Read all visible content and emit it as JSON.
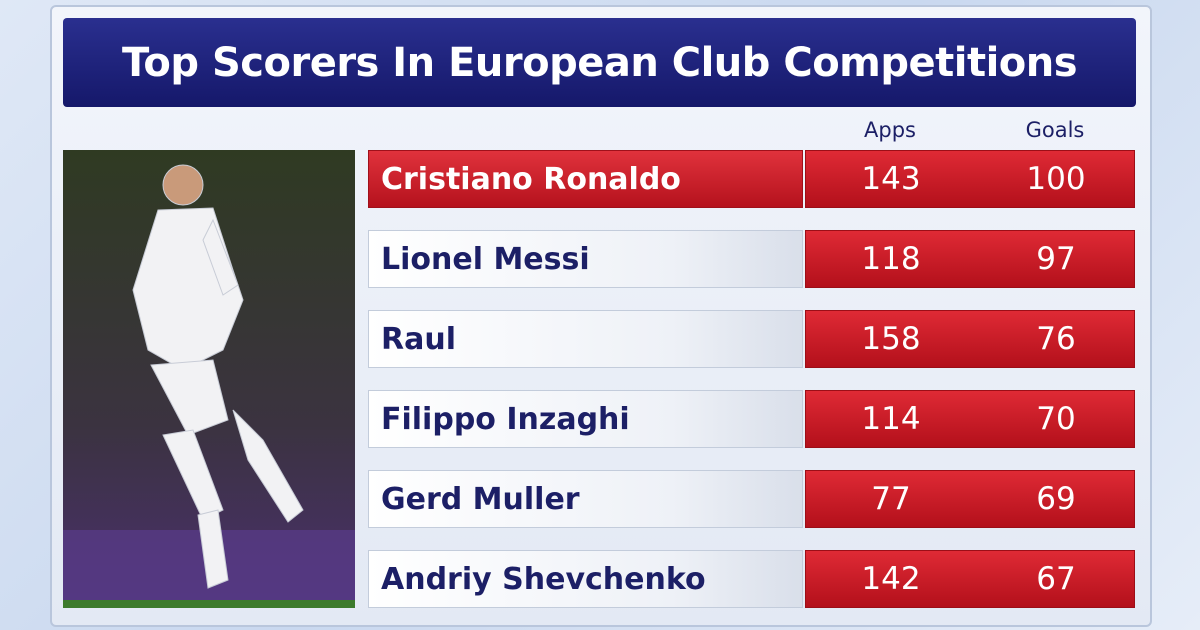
{
  "header": {
    "title": "Top Scorers In European Club Competitions"
  },
  "table": {
    "columns": [
      "Apps",
      "Goals"
    ],
    "rows": [
      [
        "Cristiano Ronaldo",
        "143",
        "100"
      ],
      [
        "Lionel Messi",
        "118",
        "97"
      ],
      [
        "Raul",
        "158",
        "76"
      ],
      [
        "Filippo Inzaghi",
        "114",
        "70"
      ],
      [
        "Gerd Muller",
        "77",
        "69"
      ],
      [
        "Andriy Shevchenko",
        "142",
        "67"
      ]
    ]
  }
}
